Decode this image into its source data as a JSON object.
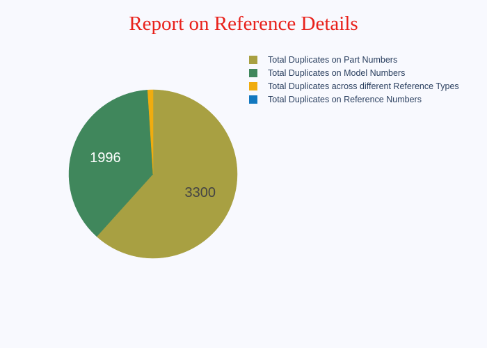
{
  "chart_data": {
    "type": "pie",
    "title": "Report on Reference Details",
    "title_color": "#e8211b",
    "background": "#f8f9fe",
    "legend_position": "top-right",
    "slices": [
      {
        "label": "Total Duplicates on Part Numbers",
        "value": 3300,
        "color": "#a8a042",
        "text_color": "#444444",
        "show_label": true
      },
      {
        "label": "Total Duplicates on Model Numbers",
        "value": 1996,
        "color": "#40875c",
        "text_color": "#ffffff",
        "show_label": true
      },
      {
        "label": "Total Duplicates across different Reference Types",
        "value": 55,
        "color": "#f0ac0f",
        "text_color": "#444444",
        "show_label": false
      },
      {
        "label": "Total Duplicates on Reference Numbers",
        "value": 0,
        "color": "#1378bf",
        "text_color": "#444444",
        "show_label": false
      }
    ]
  }
}
